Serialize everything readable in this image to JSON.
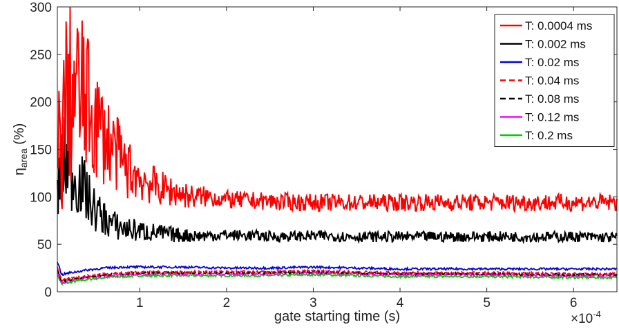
{
  "chart_data": {
    "type": "line",
    "title": "",
    "xlabel": "gate starting time (s)",
    "ylabel_main": "η",
    "ylabel_sub": "area",
    "ylabel_unit": " (%)",
    "x_exponent_prefix": "×10",
    "x_exponent": "-4",
    "xlim": [
      0.05,
      6.5
    ],
    "ylim": [
      0,
      300
    ],
    "x_ticks": [
      1,
      2,
      3,
      4,
      5,
      6
    ],
    "x_tick_labels": [
      "1",
      "2",
      "3",
      "4",
      "5",
      "6"
    ],
    "y_ticks": [
      0,
      50,
      100,
      150,
      200,
      250,
      300
    ],
    "y_tick_labels": [
      "0",
      "50",
      "100",
      "150",
      "200",
      "250",
      "300"
    ],
    "grid": false,
    "legend_position": "top-right",
    "series": [
      {
        "name": "T: 0.0004 ms",
        "color": "#ff0000",
        "dash": "solid",
        "x": [
          0.05,
          0.15,
          0.25,
          0.35,
          0.45,
          0.55,
          0.7,
          0.85,
          1.0,
          1.2,
          1.4,
          1.6,
          1.8,
          2.0,
          2.3,
          2.6,
          3.0,
          3.5,
          4.0,
          4.5,
          5.0,
          5.5,
          6.0,
          6.5
        ],
        "y": [
          130,
          200,
          210,
          205,
          185,
          170,
          150,
          130,
          120,
          110,
          105,
          100,
          100,
          97,
          96,
          95,
          94,
          94,
          94,
          94,
          94,
          94,
          94,
          94
        ]
      },
      {
        "name": "T: 0.002 ms",
        "color": "#000000",
        "dash": "solid",
        "x": [
          0.05,
          0.15,
          0.25,
          0.35,
          0.45,
          0.55,
          0.7,
          0.85,
          1.0,
          1.2,
          1.4,
          1.6,
          1.8,
          2.0,
          2.3,
          2.6,
          3.0,
          3.5,
          4.0,
          4.5,
          5.0,
          5.5,
          6.0,
          6.5
        ],
        "y": [
          110,
          140,
          120,
          110,
          90,
          80,
          70,
          66,
          64,
          62,
          60,
          59,
          59,
          60,
          59,
          58,
          59,
          58,
          58,
          58,
          58,
          58,
          58,
          57
        ]
      },
      {
        "name": "T: 0.02 ms",
        "color": "#0000dd",
        "dash": "solid",
        "x": [
          0.05,
          0.1,
          0.2,
          0.4,
          0.6,
          0.8,
          1.0,
          1.5,
          2.0,
          2.5,
          3.0,
          3.5,
          4.0,
          5.0,
          6.0,
          6.5
        ],
        "y": [
          32,
          18,
          20,
          23,
          25,
          26,
          26,
          26,
          25,
          25,
          26,
          25,
          24,
          24,
          24,
          24
        ]
      },
      {
        "name": "T: 0.04 ms",
        "color": "#ff0000",
        "dash": "dashed",
        "x": [
          0.05,
          0.1,
          0.2,
          0.4,
          0.6,
          0.8,
          1.0,
          1.5,
          2.0,
          2.5,
          3.0,
          3.5,
          4.0,
          5.0,
          6.0,
          6.5
        ],
        "y": [
          26,
          12,
          14,
          17,
          19,
          20,
          21,
          21,
          21,
          21,
          22,
          21,
          20,
          20,
          19,
          19
        ]
      },
      {
        "name": "T: 0.08 ms",
        "color": "#000000",
        "dash": "dashed",
        "x": [
          0.05,
          0.1,
          0.2,
          0.4,
          0.6,
          0.8,
          1.0,
          1.5,
          2.0,
          2.5,
          3.0,
          3.5,
          4.0,
          5.0,
          6.0,
          6.5
        ],
        "y": [
          24,
          11,
          13,
          16,
          18,
          19,
          20,
          20,
          20,
          20,
          21,
          20,
          19,
          19,
          18,
          18
        ]
      },
      {
        "name": "T: 0.12 ms",
        "color": "#ff00ff",
        "dash": "solid",
        "x": [
          0.05,
          0.1,
          0.2,
          0.4,
          0.6,
          0.8,
          1.0,
          1.5,
          2.0,
          2.5,
          3.0,
          3.5,
          4.0,
          5.0,
          6.0,
          6.5
        ],
        "y": [
          22,
          10,
          12,
          15,
          17,
          18,
          19,
          19,
          19,
          19,
          20,
          19,
          18,
          18,
          17,
          17
        ]
      },
      {
        "name": "T: 0.2 ms",
        "color": "#00cc00",
        "dash": "solid",
        "x": [
          0.05,
          0.1,
          0.2,
          0.4,
          0.6,
          0.8,
          1.0,
          1.5,
          2.0,
          2.5,
          3.0,
          3.5,
          4.0,
          5.0,
          6.0,
          6.5
        ],
        "y": [
          18,
          8,
          10,
          13,
          15,
          16,
          17,
          17,
          17,
          17,
          18,
          17,
          16,
          16,
          15,
          15
        ]
      }
    ]
  }
}
